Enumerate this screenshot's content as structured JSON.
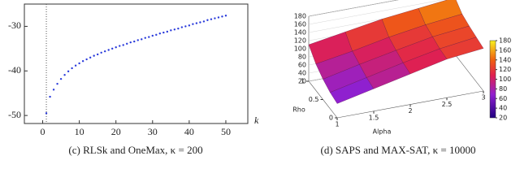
{
  "chart_data": [
    {
      "type": "scatter",
      "caption": "(c) RLSk and OneMax, κ = 200",
      "xlabel": "k",
      "color": "#2a3bdb",
      "x": [
        1,
        2,
        3,
        4,
        5,
        6,
        7,
        8,
        9,
        10,
        11,
        12,
        13,
        14,
        15,
        16,
        17,
        18,
        19,
        20,
        21,
        22,
        23,
        24,
        25,
        26,
        27,
        28,
        29,
        30,
        31,
        32,
        33,
        34,
        35,
        36,
        37,
        38,
        39,
        40,
        41,
        42,
        43,
        44,
        45,
        46,
        47,
        48,
        49,
        50
      ],
      "values": [
        -49.5,
        -45.8,
        -44.2,
        -42.9,
        -41.8,
        -40.9,
        -40.1,
        -39.4,
        -38.8,
        -38.3,
        -37.8,
        -37.4,
        -37.0,
        -36.6,
        -36.3,
        -35.9,
        -35.6,
        -35.3,
        -35.0,
        -34.7,
        -34.4,
        -34.2,
        -33.9,
        -33.6,
        -33.4,
        -33.1,
        -32.9,
        -32.6,
        -32.4,
        -32.1,
        -31.9,
        -31.6,
        -31.4,
        -31.2,
        -30.9,
        -30.7,
        -30.5,
        -30.2,
        -30.0,
        -29.8,
        -29.5,
        -29.3,
        -29.1,
        -28.9,
        -28.6,
        -28.4,
        -28.2,
        -28.0,
        -27.8,
        -27.6
      ],
      "vline": 1,
      "xlim": [
        -5,
        56
      ],
      "ylim": [
        -51.8,
        -25
      ],
      "xticks": [
        0,
        10,
        20,
        30,
        40,
        50
      ],
      "yticks": [
        -50,
        -40,
        -30
      ]
    },
    {
      "type": "surface",
      "caption": "(d) SAPS and MAX-SAT, κ = 10000",
      "xlabel": "Alpha",
      "ylabel": "Rho",
      "x": [
        1,
        1.5,
        2,
        2.5,
        3
      ],
      "y": [
        0,
        0.25,
        0.5,
        0.75,
        1
      ],
      "z": [
        [
          55,
          75,
          95,
          115,
          125
        ],
        [
          60,
          80,
          100,
          118,
          130
        ],
        [
          70,
          90,
          108,
          125,
          135
        ],
        [
          85,
          100,
          118,
          132,
          142
        ],
        [
          110,
          125,
          140,
          150,
          160
        ]
      ],
      "xlim": [
        1,
        3
      ],
      "ylim": [
        0,
        1
      ],
      "zlim": [
        20,
        180
      ],
      "xticks": [
        1,
        1.5,
        2,
        2.5,
        3
      ],
      "yticks": [
        0,
        0.5,
        1
      ],
      "zticks": [
        20,
        40,
        60,
        80,
        100,
        120,
        140,
        160,
        180
      ],
      "colorbar_ticks": [
        20,
        40,
        60,
        80,
        100,
        120,
        140,
        160,
        180
      ]
    }
  ]
}
